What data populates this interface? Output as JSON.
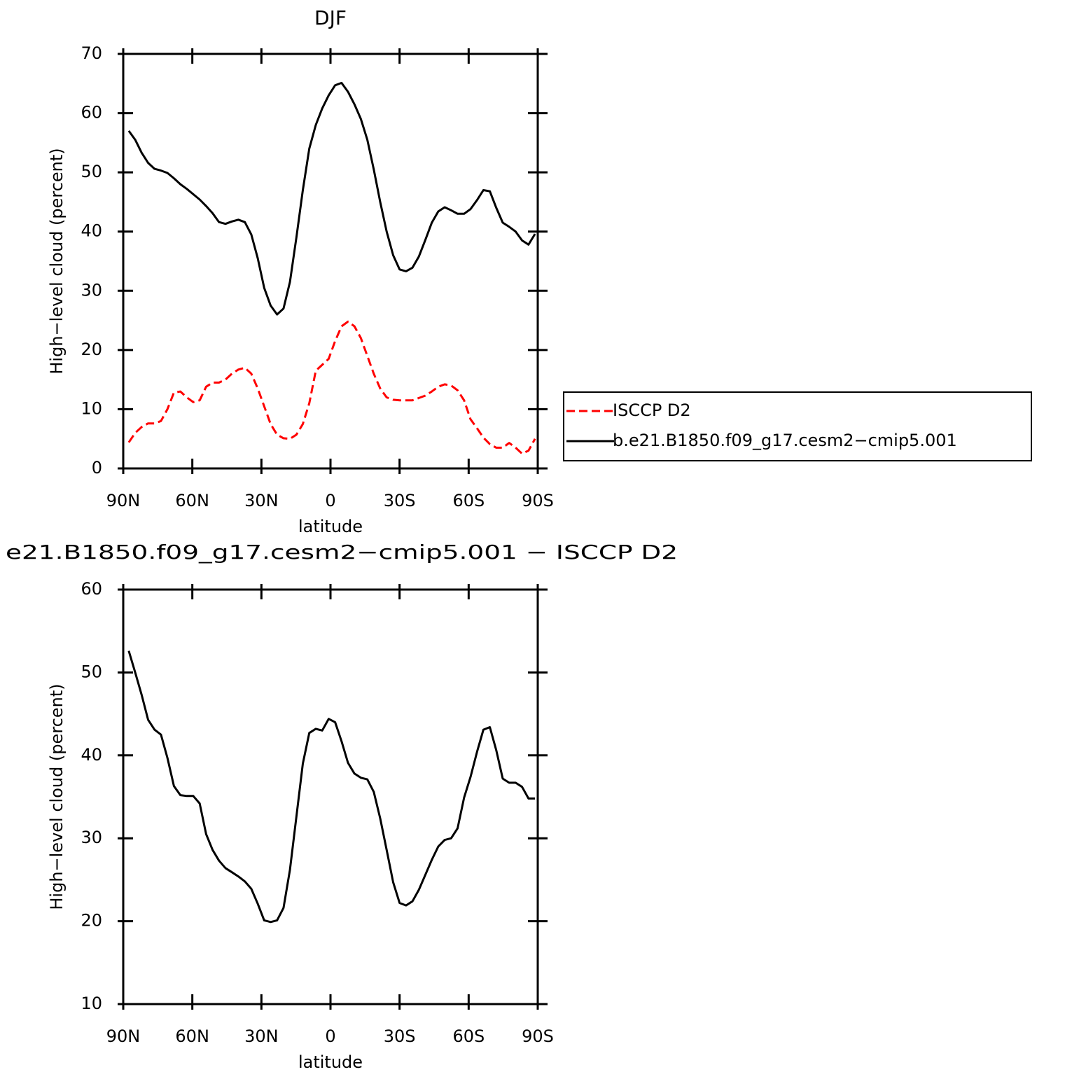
{
  "chart_data": [
    {
      "type": "line",
      "title": "DJF",
      "x_label": "latitude",
      "y_label": "High−level cloud (percent)",
      "x": [
        87.6,
        84.8,
        82,
        79.2,
        76.4,
        73.6,
        70.8,
        68,
        65.2,
        62.4,
        59.6,
        56.8,
        54,
        51.2,
        48.4,
        45.6,
        42.8,
        40,
        37.2,
        34.4,
        31.6,
        28.8,
        26,
        23.2,
        20.4,
        17.6,
        14.8,
        12,
        9.2,
        6.4,
        3.6,
        0.8,
        -2,
        -4.8,
        -7.6,
        -10.4,
        -13.2,
        -16,
        -18.8,
        -21.6,
        -24.4,
        -27.2,
        -30,
        -32.8,
        -35.6,
        -38.4,
        -41.2,
        -44,
        -46.8,
        -49.6,
        -52.4,
        -55.2,
        -58,
        -60.8,
        -63.6,
        -66.4,
        -69.2,
        -72,
        -74.8,
        -77.6,
        -80.4,
        -83.2,
        -86,
        -88.8
      ],
      "series": [
        {
          "name": "ISCCP D2",
          "color": "#ff0000",
          "style": "dashed",
          "values": [
            4.4,
            6,
            7,
            7.6,
            7.6,
            8,
            10,
            12.8,
            13,
            12,
            11.2,
            11.5,
            13.8,
            14.5,
            14.5,
            15,
            16,
            16.7,
            17,
            16,
            13.5,
            10.5,
            7.5,
            5.7,
            5.1,
            5,
            5.7,
            7.5,
            11,
            16.5,
            17.5,
            18.5,
            21.5,
            24,
            24.8,
            24,
            22,
            19,
            16,
            13.5,
            12,
            11.6,
            11.5,
            11.5,
            11.5,
            11.9,
            12.3,
            13,
            13.8,
            14.2,
            14,
            13.2,
            11.5,
            8.3,
            6.8,
            5.2,
            4.1,
            3.5,
            3.5,
            4.3,
            3.5,
            2.5,
            3,
            5
          ]
        },
        {
          "name": "b.e21.B1850.f09_g17.cesm2−cmip5.001",
          "color": "#000000",
          "style": "solid",
          "values": [
            57,
            55.5,
            53.3,
            51.6,
            50.6,
            50.3,
            49.9,
            49,
            48,
            47.2,
            46.3,
            45.4,
            44.3,
            43.1,
            41.6,
            41.3,
            41.7,
            42,
            41.6,
            39.5,
            35.5,
            30.5,
            27.5,
            26,
            27,
            31.5,
            39,
            47,
            54,
            58,
            60.8,
            63,
            64.7,
            65.1,
            63.6,
            61.5,
            59,
            55.5,
            50.5,
            45,
            40,
            36,
            33.6,
            33.3,
            33.9,
            35.8,
            38.6,
            41.5,
            43.4,
            44.1,
            43.6,
            43,
            43,
            43.8,
            45.3,
            47,
            46.8,
            44,
            41.5,
            40.8,
            40,
            38.5,
            37.8,
            39.6
          ]
        }
      ],
      "xlim": [
        90,
        -90
      ],
      "xticks": [
        {
          "value": 90,
          "label": "90N"
        },
        {
          "value": 60,
          "label": "60N"
        },
        {
          "value": 30,
          "label": "30N"
        },
        0,
        {
          "value": -30,
          "label": "30S"
        },
        {
          "value": -60,
          "label": "60S"
        },
        {
          "value": -90,
          "label": "90S"
        }
      ],
      "ylim": [
        0,
        70
      ],
      "yticks": [
        0,
        10,
        20,
        30,
        40,
        50,
        60,
        70
      ],
      "legend": "right"
    },
    {
      "type": "line",
      "title": "e21.B1850.f09_g17.cesm2−cmip5.001 − ISCCP D2",
      "x_label": "latitude",
      "y_label": "High−level cloud (percent)",
      "x": [
        87.6,
        84.8,
        82,
        79.2,
        76.4,
        73.6,
        70.8,
        68,
        65.2,
        62.4,
        59.6,
        56.8,
        54,
        51.2,
        48.4,
        45.6,
        42.8,
        40,
        37.2,
        34.4,
        31.6,
        28.8,
        26,
        23.2,
        20.4,
        17.6,
        14.8,
        12,
        9.2,
        6.4,
        3.6,
        0.8,
        -2,
        -4.8,
        -7.6,
        -10.4,
        -13.2,
        -16,
        -18.8,
        -21.6,
        -24.4,
        -27.2,
        -30,
        -32.8,
        -35.6,
        -38.4,
        -41.2,
        -44,
        -46.8,
        -49.6,
        -52.4,
        -55.2,
        -58,
        -60.8,
        -63.6,
        -66.4,
        -69.2,
        -72,
        -74.8,
        -77.6,
        -80.4,
        -83.2,
        -86,
        -88.8
      ],
      "series": [
        {
          "color": "#000000",
          "style": "solid",
          "values": [
            52.6,
            50,
            47.3,
            44.3,
            43.1,
            42.5,
            39.7,
            36.3,
            35.2,
            35.1,
            35.1,
            34.2,
            30.5,
            28.6,
            27.3,
            26.4,
            25.9,
            25.4,
            24.8,
            23.9,
            22.1,
            20.1,
            19.9,
            20.1,
            21.6,
            26.2,
            32.6,
            39,
            42.7,
            43.2,
            43,
            44.4,
            44,
            41.7,
            39.1,
            37.8,
            37.3,
            37.1,
            35.6,
            32.4,
            28.6,
            24.7,
            22.2,
            21.9,
            22.4,
            23.8,
            25.6,
            27.4,
            29,
            29.8,
            30,
            31.2,
            34.9,
            37.4,
            40.4,
            43.1,
            43.4,
            40.6,
            37.2,
            36.7,
            36.7,
            36.2,
            34.8,
            34.8
          ]
        }
      ],
      "xlim": [
        90,
        -90
      ],
      "xticks": [
        {
          "value": 90,
          "label": "90N"
        },
        {
          "value": 60,
          "label": "60N"
        },
        {
          "value": 30,
          "label": "30N"
        },
        0,
        {
          "value": -30,
          "label": "30S"
        },
        {
          "value": -60,
          "label": "60S"
        },
        {
          "value": -90,
          "label": "90S"
        }
      ],
      "ylim": [
        10,
        60
      ],
      "yticks": [
        10,
        20,
        30,
        40,
        50,
        60
      ]
    }
  ]
}
